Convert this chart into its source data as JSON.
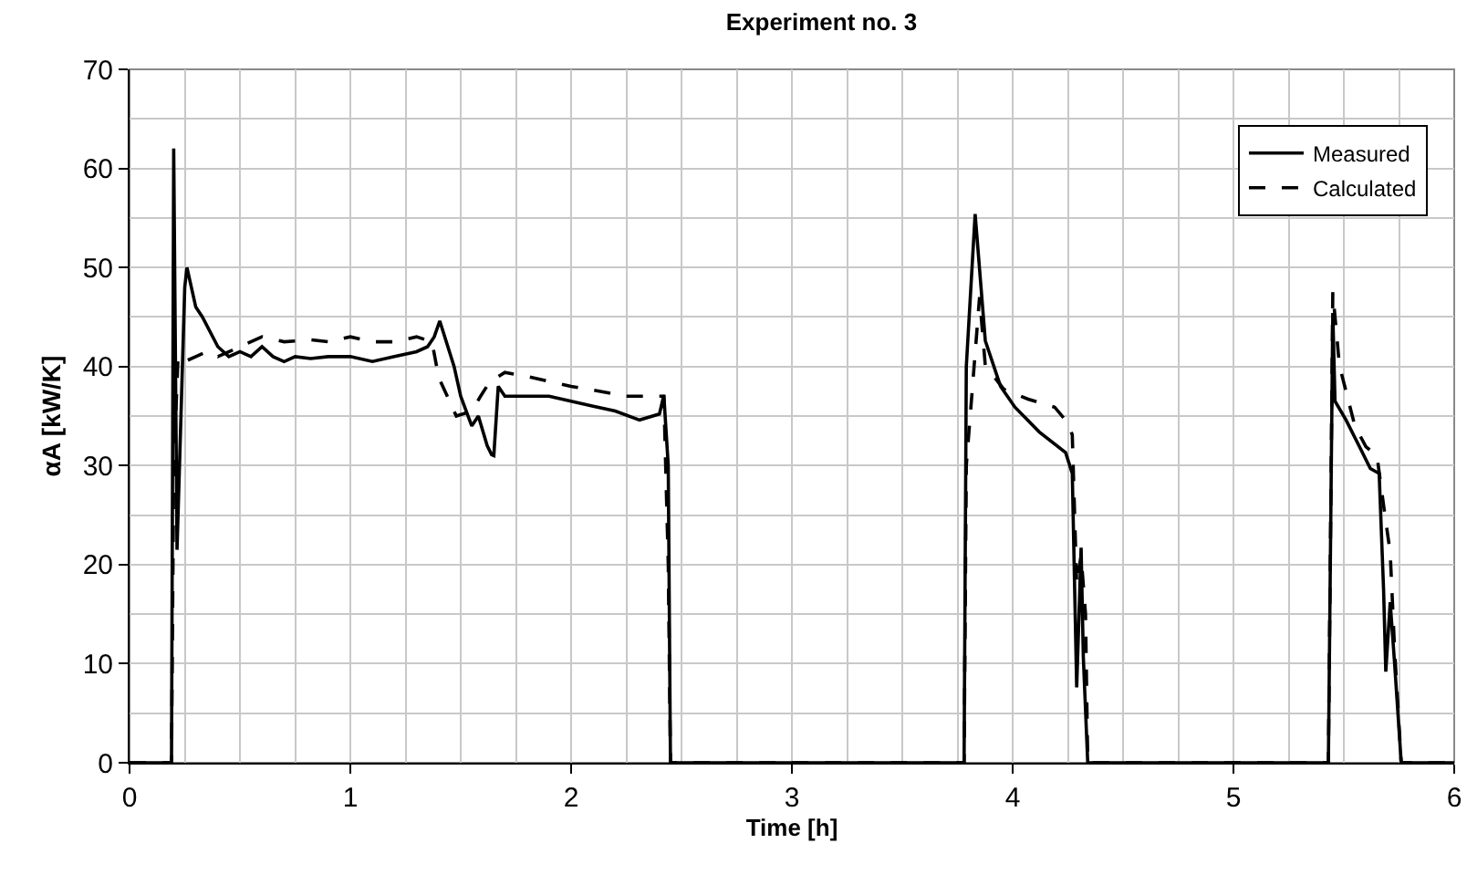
{
  "chart_data": {
    "type": "line",
    "title": "Experiment no. 3",
    "xlabel": "Time [h]",
    "ylabel": "αA [kW/K]",
    "xlim": [
      0,
      6
    ],
    "xticks": [
      0,
      1,
      2,
      3,
      4,
      5,
      6
    ],
    "ylim": [
      0,
      70
    ],
    "yticks": [
      0,
      10,
      20,
      30,
      40,
      50,
      60,
      70
    ],
    "grid": true,
    "legend": "top right",
    "marker": "none",
    "series": [
      {
        "name": "Measured",
        "color": "#000000",
        "line_style": "solid",
        "x": [
          0,
          0.19,
          0.2,
          0.215,
          0.25,
          0.26,
          0.3,
          0.33,
          0.4,
          0.45,
          0.5,
          0.55,
          0.6,
          0.65,
          0.7,
          0.75,
          0.82,
          0.9,
          1.0,
          1.1,
          1.2,
          1.3,
          1.35,
          1.38,
          1.405,
          1.47,
          1.5,
          1.55,
          1.58,
          1.62,
          1.64,
          1.65,
          1.67,
          1.7,
          1.8,
          1.9,
          2.0,
          2.1,
          2.2,
          2.31,
          2.4,
          2.42,
          2.44,
          2.45,
          3.0,
          3.78,
          3.79,
          3.83,
          3.876,
          3.945,
          4.01,
          4.12,
          4.24,
          4.27,
          4.29,
          4.31,
          4.32,
          4.34,
          5.0,
          5.43,
          5.45,
          5.46,
          5.51,
          5.58,
          5.62,
          5.66,
          5.68,
          5.69,
          5.71,
          5.73,
          5.76,
          6.0
        ],
        "values": [
          0,
          0,
          62,
          21.5,
          48,
          50,
          46,
          45,
          42,
          41,
          41.5,
          41,
          42,
          41,
          40.5,
          41,
          40.8,
          41,
          41,
          40.5,
          41,
          41.5,
          42,
          43,
          44.6,
          40,
          37,
          34,
          35,
          32,
          31.1,
          31,
          38,
          37,
          37,
          37,
          36.5,
          36,
          35.5,
          34.6,
          35.2,
          37.1,
          30,
          0,
          0,
          0,
          40,
          55.4,
          42.6,
          38,
          35.9,
          33.4,
          31.3,
          29.2,
          7.6,
          21.7,
          10.7,
          0,
          0,
          0,
          45.4,
          36.5,
          34.6,
          31.5,
          29.7,
          29.2,
          17.5,
          9.2,
          16.2,
          10,
          0,
          0
        ]
      },
      {
        "name": "Calculated",
        "color": "#000000",
        "line_style": "dashed",
        "x": [
          0,
          0.19,
          0.2,
          0.22,
          0.25,
          0.3,
          0.35,
          0.4,
          0.5,
          0.6,
          0.7,
          0.82,
          0.9,
          1.0,
          1.1,
          1.2,
          1.3,
          1.37,
          1.4,
          1.48,
          1.55,
          1.59,
          1.63,
          1.7,
          1.8,
          1.9,
          2.0,
          2.08,
          2.25,
          2.38,
          2.42,
          2.44,
          2.45,
          3.0,
          3.78,
          3.79,
          3.85,
          3.876,
          3.96,
          4.07,
          4.19,
          4.25,
          4.27,
          4.29,
          4.31,
          4.33,
          4.34,
          5.0,
          5.43,
          5.45,
          5.48,
          5.55,
          5.6,
          5.65,
          5.68,
          5.71,
          5.73,
          5.76,
          6.0
        ],
        "values": [
          0,
          0,
          30,
          41,
          40.5,
          41,
          41.5,
          41,
          42,
          43,
          42.5,
          42.7,
          42.5,
          43,
          42.5,
          42.5,
          43,
          42.5,
          38.9,
          35,
          35.5,
          37,
          38.4,
          39.4,
          39,
          38.5,
          38,
          37.7,
          37,
          37,
          37,
          20,
          0,
          0,
          0,
          30,
          47,
          40.1,
          37.7,
          36.7,
          35.9,
          34.3,
          33.1,
          18,
          20.9,
          15,
          0,
          0,
          0,
          47.5,
          40.1,
          34,
          31.9,
          31,
          26,
          21.2,
          11.4,
          0,
          0
        ]
      }
    ]
  }
}
